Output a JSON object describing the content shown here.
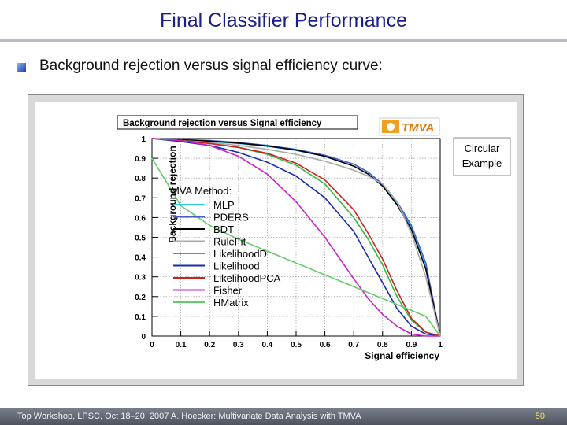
{
  "slide": {
    "title": "Final Classifier Performance",
    "subtitle": "Background rejection versus signal efficiency curve:",
    "footer_text": "Top Workshop, LPSC, Oct 18–20, 2007 A. Hoecker: Multivariate Data Analysis with TMVA",
    "page_number": "50"
  },
  "chart_data": {
    "type": "line",
    "title": "Background rejection versus Signal efficiency",
    "xlabel": "Signal efficiency",
    "ylabel": "Background rejection",
    "xlim": [
      0,
      1
    ],
    "ylim": [
      0,
      1
    ],
    "xticks": [
      "0",
      "0.1",
      "0.2",
      "0.3",
      "0.4",
      "0.5",
      "0.6",
      "0.7",
      "0.8",
      "0.9",
      "1"
    ],
    "yticks": [
      "0",
      "0.1",
      "0.2",
      "0.3",
      "0.4",
      "0.5",
      "0.6",
      "0.7",
      "0.8",
      "0.9",
      "1"
    ],
    "grid": true,
    "logo_text": "TMVA",
    "annotation": "Circular\nExample",
    "legend_title": "MVA Method:",
    "legend_position": "left",
    "x": [
      0,
      0.1,
      0.2,
      0.3,
      0.4,
      0.5,
      0.6,
      0.7,
      0.75,
      0.8,
      0.85,
      0.9,
      0.95,
      1
    ],
    "series": [
      {
        "name": "MLP",
        "color": "#22ccee",
        "values": [
          1,
          0.993,
          0.985,
          0.975,
          0.96,
          0.94,
          0.91,
          0.86,
          0.82,
          0.76,
          0.67,
          0.55,
          0.36,
          0.0
        ]
      },
      {
        "name": "PDERS",
        "color": "#4a5ccc",
        "values": [
          1,
          0.995,
          0.99,
          0.98,
          0.965,
          0.945,
          0.915,
          0.87,
          0.83,
          0.77,
          0.68,
          0.56,
          0.37,
          0.0
        ]
      },
      {
        "name": "BDT",
        "color": "#000000",
        "values": [
          1,
          0.994,
          0.987,
          0.977,
          0.962,
          0.942,
          0.91,
          0.86,
          0.82,
          0.76,
          0.665,
          0.54,
          0.34,
          0.0
        ]
      },
      {
        "name": "RuleFit",
        "color": "#aaaaaa",
        "values": [
          1,
          0.99,
          0.98,
          0.965,
          0.945,
          0.92,
          0.885,
          0.84,
          0.81,
          0.77,
          0.68,
          0.52,
          0.3,
          0.0
        ]
      },
      {
        "name": "LikelihoodD",
        "color": "#33bb44",
        "values": [
          1,
          0.99,
          0.975,
          0.955,
          0.92,
          0.865,
          0.77,
          0.6,
          0.49,
          0.36,
          0.2,
          0.08,
          0.02,
          0.0
        ]
      },
      {
        "name": "Likelihood",
        "color": "#1a2bb0",
        "values": [
          1,
          0.985,
          0.965,
          0.93,
          0.88,
          0.81,
          0.7,
          0.53,
          0.4,
          0.27,
          0.14,
          0.05,
          0.01,
          0.0
        ]
      },
      {
        "name": "LikelihoodPCA",
        "color": "#cc2222",
        "values": [
          1,
          0.99,
          0.975,
          0.955,
          0.925,
          0.875,
          0.79,
          0.64,
          0.52,
          0.39,
          0.23,
          0.09,
          0.02,
          0.0
        ]
      },
      {
        "name": "Fisher",
        "color": "#cc22cc",
        "values": [
          1,
          0.99,
          0.965,
          0.91,
          0.82,
          0.68,
          0.5,
          0.29,
          0.19,
          0.11,
          0.05,
          0.01,
          0.0,
          0.0
        ]
      },
      {
        "name": "HMatrix",
        "color": "#66cc66",
        "values": [
          0.9,
          0.66,
          0.56,
          0.49,
          0.43,
          0.37,
          0.31,
          0.25,
          0.22,
          0.19,
          0.16,
          0.13,
          0.1,
          0.0
        ]
      }
    ]
  }
}
